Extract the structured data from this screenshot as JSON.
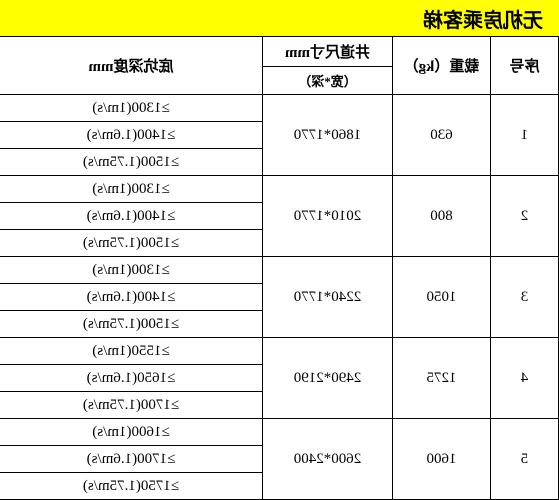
{
  "title": "无机房乘客梯",
  "headers": {
    "seq": "序号",
    "load": "载重（kg）",
    "shaft_main": "井道尺寸mm",
    "shaft_sub": "（宽*深）",
    "pit": "底坑深度mm"
  },
  "rows": [
    {
      "seq": "1",
      "load": "630",
      "shaft": "1860*1770",
      "pits": [
        "≥1300(1m/s)",
        "≥1400(1.6m/s)",
        "≥1500(1.75m/s)"
      ]
    },
    {
      "seq": "2",
      "load": "800",
      "shaft": "2010*1770",
      "pits": [
        "≥1300(1m/s)",
        "≥1400(1.6m/s)",
        "≥1500(1.75m/s)"
      ]
    },
    {
      "seq": "3",
      "load": "1050",
      "shaft": "2240*1770",
      "pits": [
        "≥1300(1m/s)",
        "≥1400(1.6m/s)",
        "≥1500(1.75m/s)"
      ]
    },
    {
      "seq": "4",
      "load": "1275",
      "shaft": "2490*2190",
      "pits": [
        "≥1550(1m/s)",
        "≥1650(1.6m/s)",
        "≥1700(1.75m/s)"
      ]
    },
    {
      "seq": "5",
      "load": "1600",
      "shaft": "2600*2400",
      "pits": [
        "≥1600(1m/s)",
        "≥1700(1.6m/s)",
        "≥1750(1.75m/s)"
      ]
    }
  ],
  "colors": {
    "title_bg": "#ffff00",
    "border": "#000000",
    "text": "#000000",
    "bg": "#ffffff"
  }
}
